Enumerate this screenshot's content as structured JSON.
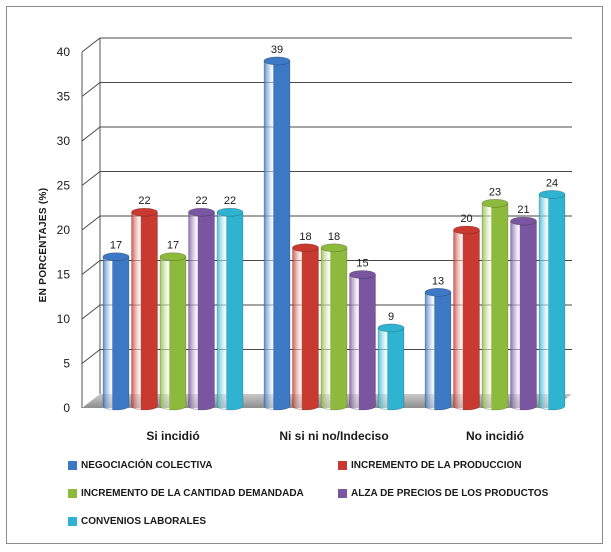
{
  "chart_data": {
    "type": "bar",
    "title": "",
    "xlabel": "",
    "ylabel": "EN PORCENTAJES (%)",
    "ylim": [
      0,
      40
    ],
    "yticks": [
      0,
      5,
      10,
      15,
      20,
      25,
      30,
      35,
      40
    ],
    "categories": [
      "Si incidió",
      "Ni si ni no/Indeciso",
      "No incidió"
    ],
    "series": [
      {
        "name": "NEGOCIACIÓN COLECTIVA",
        "color": "#3c78c4",
        "values": [
          17,
          39,
          13
        ]
      },
      {
        "name": "INCREMENTO DE LA PRODUCCION",
        "color": "#c8392f",
        "values": [
          22,
          18,
          20
        ]
      },
      {
        "name": "INCREMENTO DE LA CANTIDAD DEMANDADA",
        "color": "#8dba3c",
        "values": [
          17,
          18,
          23
        ]
      },
      {
        "name": "ALZA DE PRECIOS DE LOS PRODUCTOS",
        "color": "#7a55a0",
        "values": [
          22,
          15,
          21
        ]
      },
      {
        "name": "CONVENIOS LABORALES",
        "color": "#2fb3d0",
        "values": [
          22,
          9,
          24
        ]
      }
    ],
    "grid": true,
    "legend_position": "bottom",
    "style": "3d-cylinder"
  }
}
